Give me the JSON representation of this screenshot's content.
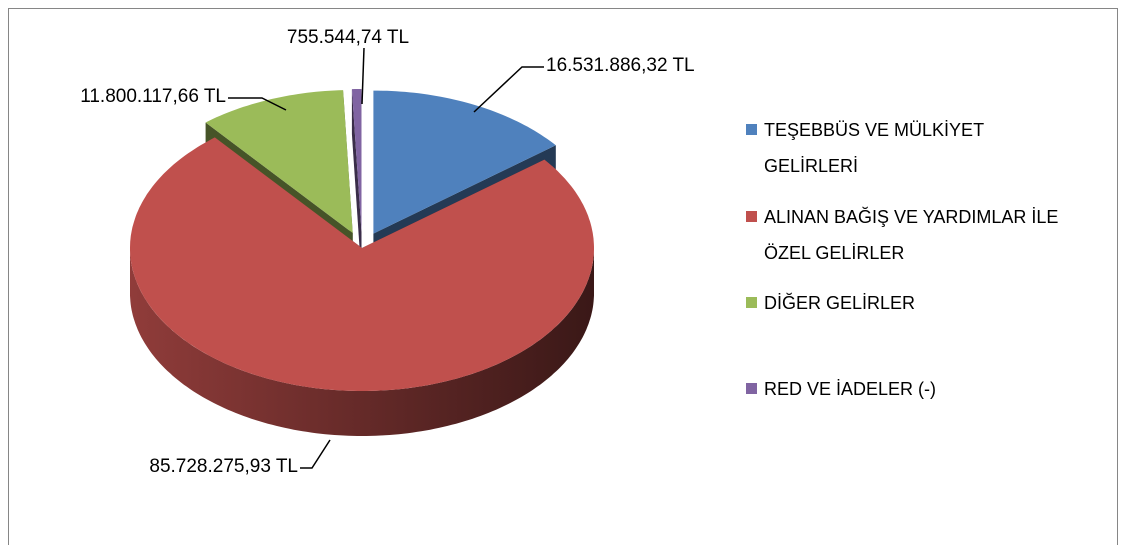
{
  "chart_data": {
    "type": "pie",
    "categories": [
      "TEŞEBBÜS VE MÜLKİYET GELİRLERİ",
      "ALINAN BAĞIŞ VE YARDIMLAR İLE ÖZEL GELİRLER",
      "DİĞER GELİRLER",
      "RED VE İADELER (-)"
    ],
    "values": [
      16531886.32,
      85728275.93,
      11800117.66,
      755544.74
    ],
    "value_labels": [
      "16.531.886,32 TL",
      "85.728.275,93 TL",
      "11.800.117,66 TL",
      "755.544,74 TL"
    ],
    "colors": [
      "#4f81bd",
      "#c0504d",
      "#9bbb59",
      "#8064a2"
    ],
    "legend": "right"
  }
}
